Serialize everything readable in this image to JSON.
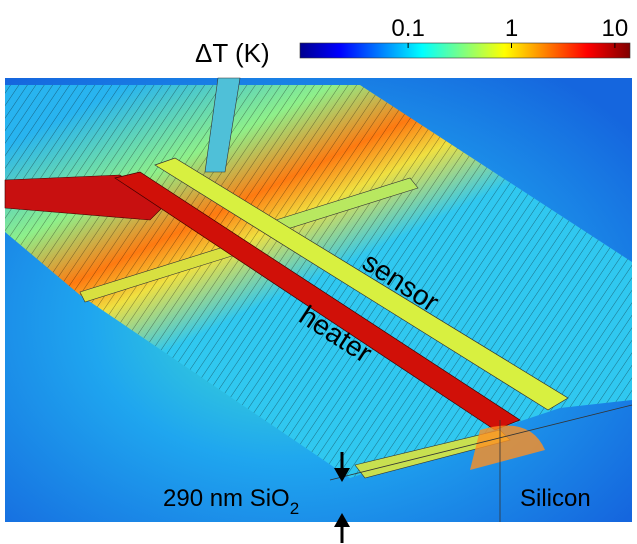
{
  "colorbar": {
    "label": "ΔT (K)",
    "range": [
      0.009,
      14
    ],
    "log_scale": true,
    "ticks": [
      0.1,
      1,
      10
    ]
  },
  "labels": {
    "sensor": "sensor",
    "heater": "heater",
    "substrate": "Silicon",
    "oxide": {
      "text": "290 nm SiO",
      "subscript": "2"
    }
  }
}
